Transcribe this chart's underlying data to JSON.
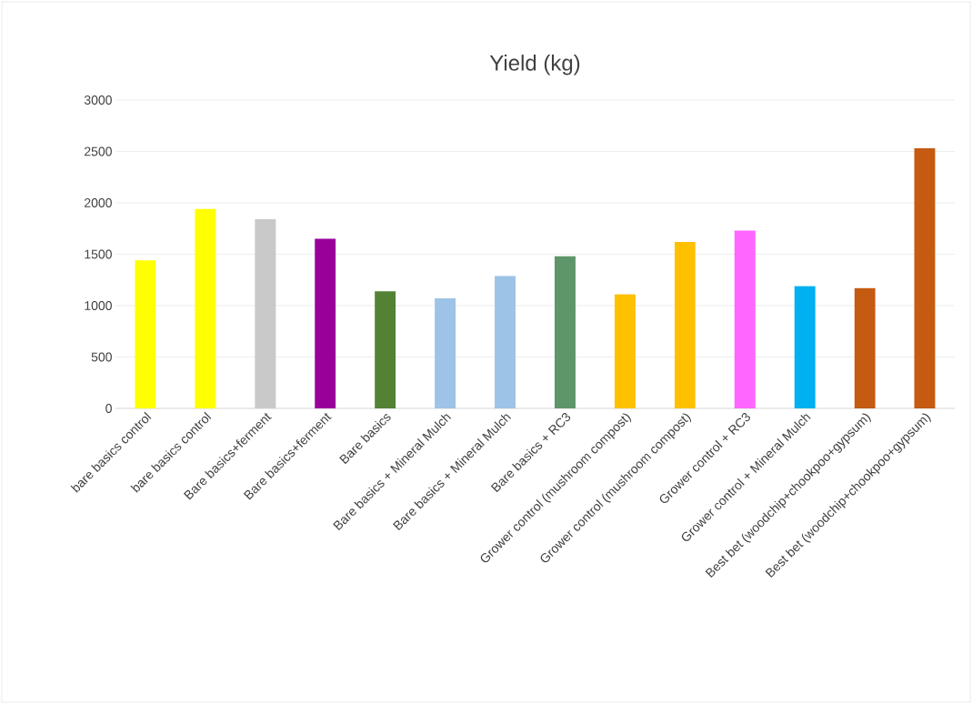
{
  "chart_data": {
    "type": "bar",
    "title": "Yield (kg)",
    "categories": [
      "bare basics control",
      "bare basics control",
      "Bare basics+ferment",
      "Bare basics+ferment",
      "Bare basics",
      "Bare basics + Mineral Mulch",
      "Bare basics + Mineral Mulch",
      "Bare basics + RC3",
      "Grower control (mushroom compost)",
      "Grower control (mushroom compost)",
      "Grower control + RC3",
      "Grower control + Mineral Mulch",
      "Best bet (woodchip+chookpoo+gypsum)",
      "Best bet (woodchip+chookpoo+gypsum)"
    ],
    "values": [
      1440,
      1940,
      1840,
      1650,
      1140,
      1070,
      1290,
      1480,
      1110,
      1620,
      1730,
      1190,
      1170,
      2530
    ],
    "colors": [
      "#ffff00",
      "#ffff00",
      "#c9c9c9",
      "#990099",
      "#548235",
      "#9dc3e6",
      "#9dc3e6",
      "#5f9669",
      "#ffc000",
      "#ffc000",
      "#ff66ff",
      "#00b0f0",
      "#c55a11",
      "#c55a11"
    ],
    "ylim": [
      0,
      3000
    ],
    "yticks": [
      0,
      500,
      1000,
      1500,
      2000,
      2500,
      3000
    ],
    "grid": "y"
  }
}
